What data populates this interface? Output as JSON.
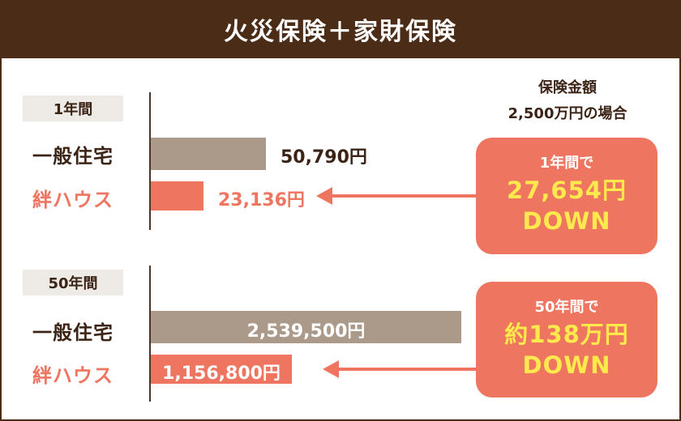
{
  "title": "火災保険＋家財保険",
  "caption": {
    "line1": "保険金額",
    "line2": "2,500万円の場合"
  },
  "colors": {
    "header": "#4a2c17",
    "general_bar": "#ab9a8a",
    "kizuna": "#ee7560",
    "highlight": "#ffe94d"
  },
  "chart_data": [
    {
      "type": "bar",
      "orientation": "horizontal",
      "period": "1年間",
      "categories": [
        "一般住宅",
        "絆ハウス"
      ],
      "values": [
        50790,
        23136
      ],
      "value_labels": [
        "50,790円",
        "23,136円"
      ],
      "unit": "円",
      "savings": {
        "line1": "1年間で",
        "line2": "27,654円",
        "line3": "DOWN"
      }
    },
    {
      "type": "bar",
      "orientation": "horizontal",
      "period": "50年間",
      "categories": [
        "一般住宅",
        "絆ハウス"
      ],
      "values": [
        2539500,
        1156800
      ],
      "value_labels": [
        "2,539,500円",
        "1,156,800円"
      ],
      "unit": "円",
      "savings": {
        "line1": "50年間で",
        "line2": "約138万円",
        "line3": "DOWN"
      }
    }
  ]
}
